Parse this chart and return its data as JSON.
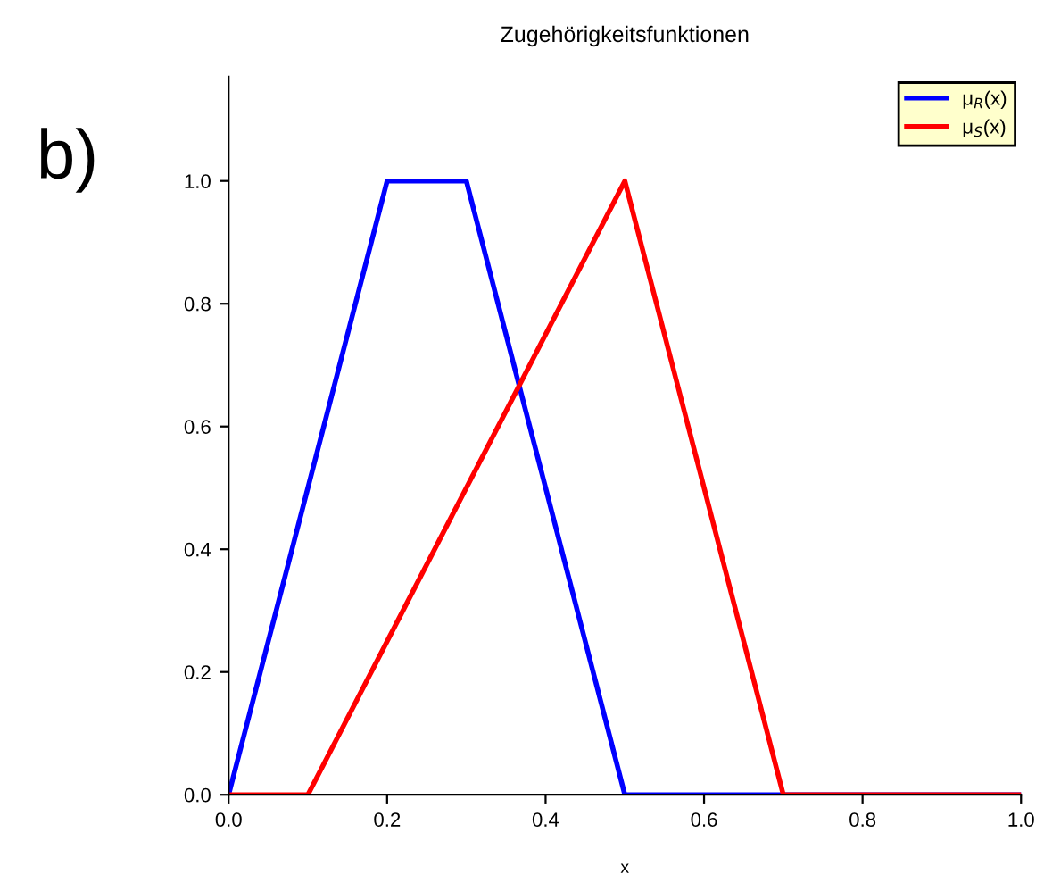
{
  "chart_data": {
    "type": "line",
    "title": "Zugehörigkeitsfunktionen",
    "xlabel": "x",
    "series": [
      {
        "name": "μ$_{R}$(x)",
        "color": "#0000ff",
        "x": [
          0.0,
          0.2,
          0.3,
          0.5,
          1.0
        ],
        "values": [
          0.0,
          1.0,
          1.0,
          0.0,
          0.0
        ]
      },
      {
        "name": "μ$_{S}$(x)",
        "color": "#ff0000",
        "x": [
          0.0,
          0.1,
          0.5,
          0.7,
          1.0
        ],
        "values": [
          0.0,
          0.0,
          1.0,
          0.0,
          0.0
        ]
      }
    ],
    "xlim": [
      0,
      1.0
    ],
    "ylim": [
      0,
      1.17
    ],
    "xticks": [
      {
        "value": 0,
        "label": "0.0"
      },
      0.2,
      0.4,
      0.6,
      0.8,
      {
        "value": 1,
        "label": "1.0"
      }
    ],
    "yticks": [
      {
        "value": 0,
        "label": "0.0"
      },
      0.2,
      0.4,
      0.6,
      0.8,
      {
        "value": 1,
        "label": "1.0"
      }
    ],
    "grid": false,
    "legend": "top right",
    "marker": "none",
    "line_style": "solid",
    "annotations": [
      "b)"
    ]
  }
}
